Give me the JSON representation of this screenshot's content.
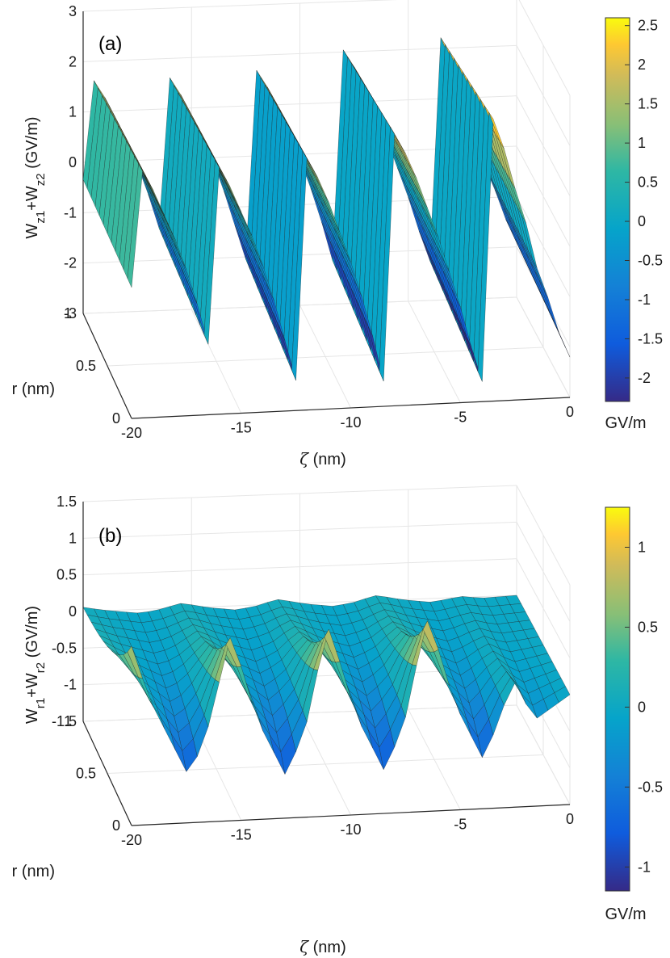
{
  "chart_data": [
    {
      "panel": "(a)",
      "type": "surface",
      "zlabel_base": "W",
      "zlabel_sub1": "z1",
      "zlabel_mid": "+W",
      "zlabel_sub2": "z2",
      "zlabel_unit": " (GV/m)",
      "xlabel_sym": "ζ",
      "xlabel_unit": " (nm)",
      "ylabel": "r (nm)",
      "x_ticks": [
        "-20",
        "-15",
        "-10",
        "-5",
        "0"
      ],
      "y_ticks": [
        "0",
        "0.5",
        "1"
      ],
      "z_ticks": [
        "3",
        "2",
        "1",
        "0",
        "-1",
        "-2",
        "-3"
      ],
      "xlim": [
        -20,
        0
      ],
      "ylim": [
        0,
        1
      ],
      "zlim": [
        -3,
        3
      ],
      "colorbar": {
        "ticks": [
          "2.5",
          "2",
          "1.5",
          "1",
          "0.5",
          "0",
          "-0.5",
          "-1",
          "-1.5",
          "-2"
        ],
        "unit": "GV/m",
        "range": [
          -2.3,
          2.6
        ]
      },
      "profile": {
        "zeta": [
          -20,
          -19.5,
          -19,
          -18.5,
          -18,
          -17.5,
          -17,
          -16.5,
          -16,
          -15.5,
          -15,
          -14.5,
          -14,
          -13.5,
          -13,
          -12.5,
          -12,
          -11.5,
          -11,
          -10.5,
          -10,
          -9.5,
          -9,
          -8.5,
          -8,
          -7.5,
          -7,
          -6.5,
          -6,
          -5.5,
          -5,
          -4.5,
          -4,
          -3.5,
          -3,
          -2.5,
          -2,
          -1.5,
          -1,
          -0.5,
          0
        ],
        "value": [
          -0.4,
          1.9,
          1.5,
          1.0,
          0.5,
          -0.1,
          -0.8,
          -1.6,
          1.9,
          1.5,
          1.0,
          0.5,
          -0.1,
          -0.8,
          -1.6,
          -2.4,
          2.0,
          1.6,
          1.1,
          0.5,
          -0.1,
          -0.8,
          -1.6,
          -2.5,
          2.4,
          2.0,
          1.5,
          0.9,
          0.3,
          -0.4,
          -1.1,
          -1.9,
          -2.6,
          2.6,
          2.0,
          1.2,
          0.5,
          -0.4,
          -1.0,
          -1.7,
          -2.2
        ]
      }
    },
    {
      "panel": "(b)",
      "type": "surface",
      "zlabel_base": "W",
      "zlabel_sub1": "r1",
      "zlabel_mid": "+W",
      "zlabel_sub2": "r2",
      "zlabel_unit": " (GV/m)",
      "xlabel_sym": "ζ",
      "xlabel_unit": " (nm)",
      "ylabel": "r (nm)",
      "x_ticks": [
        "-20",
        "-15",
        "-10",
        "-5",
        "0"
      ],
      "y_ticks": [
        "0",
        "0.5",
        "1"
      ],
      "z_ticks": [
        "1.5",
        "1",
        "0.5",
        "0",
        "-0.5",
        "-1",
        "-1.5"
      ],
      "xlim": [
        -20,
        0
      ],
      "ylim": [
        0,
        1
      ],
      "zlim": [
        -1.5,
        1.5
      ],
      "colorbar": {
        "ticks": [
          "1",
          "0.5",
          "0",
          "-0.5",
          "-1"
        ],
        "unit": "GV/m",
        "range": [
          -1.15,
          1.25
        ]
      },
      "profile": {
        "zeta": [
          -20,
          -19.5,
          -19,
          -18.5,
          -18,
          -17.5,
          -17,
          -16.5,
          -16,
          -15.5,
          -15,
          -14.5,
          -14,
          -13.5,
          -13,
          -12.5,
          -12,
          -11.5,
          -11,
          -10.5,
          -10,
          -9.5,
          -9,
          -8.5,
          -8,
          -7.5,
          -7,
          -6.5,
          -6,
          -5.5,
          -5,
          -4.5,
          -4,
          -3.5,
          -3,
          -2.5,
          -2,
          -1.5,
          -1,
          -0.5,
          0
        ],
        "value": [
          0.95,
          0.5,
          0.1,
          -0.2,
          -0.5,
          -0.8,
          -0.6,
          -0.2,
          0.4,
          1.0,
          0.6,
          0.1,
          -0.3,
          -0.6,
          -0.9,
          -0.6,
          -0.2,
          0.5,
          1.05,
          0.6,
          0.1,
          -0.3,
          -0.6,
          -0.9,
          -0.6,
          -0.2,
          0.5,
          1.1,
          0.7,
          0.2,
          -0.2,
          -0.5,
          -0.8,
          -0.5,
          -0.1,
          0.2,
          -0.1,
          -0.3,
          -0.2,
          -0.1,
          0.0
        ]
      }
    }
  ]
}
